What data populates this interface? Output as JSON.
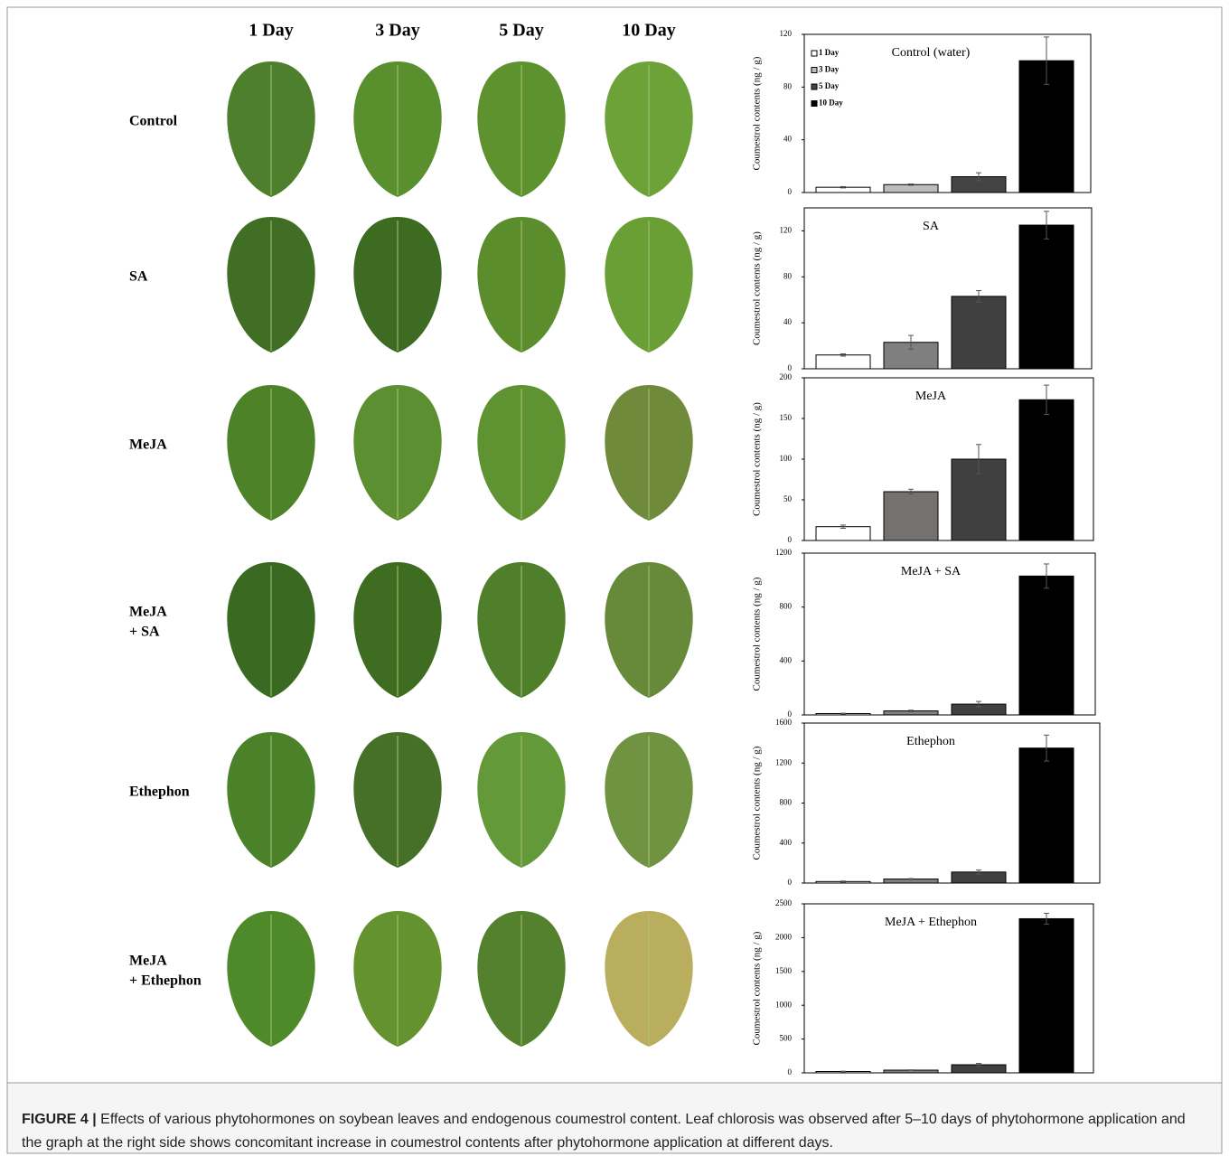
{
  "figure": {
    "columns": [
      "1 Day",
      "3 Day",
      "5 Day",
      "10 Day"
    ],
    "rows": [
      [
        "Control"
      ],
      [
        "SA"
      ],
      [
        "MeJA"
      ],
      [
        "MeJA",
        "+ SA"
      ],
      [
        "Ethephon"
      ],
      [
        "MeJA",
        "+ Ethephon"
      ]
    ],
    "caption_label": "FIGURE 4 |",
    "caption": "Effects of various phytohormones on soybean leaves and endogenous coumestrol content. Leaf chlorosis was observed after 5–10 days of phytohormone application and the graph at the right side shows concomitant increase in coumestrol contents after phytohormone application at different days."
  },
  "chart_data": [
    {
      "type": "bar",
      "title": "Control (water)",
      "y_label": "Coumestrol contents (ng / g)",
      "categories": [
        "1 Day",
        "3 Day",
        "5 Day",
        "10 Day"
      ],
      "legend": true,
      "values": [
        4,
        6,
        12,
        100
      ],
      "errors": [
        0.5,
        0.5,
        3,
        18
      ],
      "colors": [
        "#ffffff",
        "#bdbdbd",
        "#444444",
        "#000000"
      ],
      "ylim": [
        0,
        120
      ],
      "yticks": [
        0,
        40,
        80,
        120
      ]
    },
    {
      "type": "bar",
      "title": "SA",
      "y_label": "Coumestrol contents (ng / g)",
      "values": [
        12,
        23,
        63,
        125
      ],
      "errors": [
        1,
        6,
        5,
        12
      ],
      "colors": [
        "#ffffff",
        "#7f7f7f",
        "#404040",
        "#000000"
      ],
      "ylim": [
        0,
        140
      ],
      "yticks": [
        0,
        40,
        80,
        120
      ]
    },
    {
      "type": "bar",
      "title": "MeJA",
      "y_label": "Coumestrol contents (ng / g)",
      "values": [
        17,
        60,
        100,
        173
      ],
      "errors": [
        2,
        3,
        18,
        18
      ],
      "colors": [
        "#ffffff",
        "#767171",
        "#404040",
        "#000000"
      ],
      "ylim": [
        0,
        200
      ],
      "yticks": [
        0,
        50,
        100,
        150,
        200
      ]
    },
    {
      "type": "bar",
      "title": "MeJA + SA",
      "y_label": "Coumestrol contents (ng / g)",
      "values": [
        10,
        30,
        80,
        1030
      ],
      "errors": [
        3,
        5,
        20,
        90
      ],
      "colors": [
        "#ffffff",
        "#7f7f7f",
        "#404040",
        "#000000"
      ],
      "ylim": [
        0,
        1200
      ],
      "yticks": [
        0,
        400,
        800,
        1200
      ]
    },
    {
      "type": "bar",
      "title": "Ethephon",
      "y_label": "Coumestrol contents (ng / g)",
      "values": [
        15,
        40,
        110,
        1350
      ],
      "errors": [
        5,
        5,
        20,
        130
      ],
      "colors": [
        "#ffffff",
        "#7f7f7f",
        "#404040",
        "#000000"
      ],
      "ylim": [
        0,
        1600
      ],
      "yticks": [
        0,
        400,
        800,
        1200,
        1600
      ]
    },
    {
      "type": "bar",
      "title": "MeJA + Ethephon",
      "y_label": "Coumestrol contents (ng / g)",
      "values": [
        20,
        40,
        120,
        2280
      ],
      "errors": [
        5,
        5,
        20,
        80
      ],
      "colors": [
        "#ffffff",
        "#7f7f7f",
        "#404040",
        "#000000"
      ],
      "ylim": [
        0,
        2500
      ],
      "yticks": [
        0,
        500,
        1000,
        1500,
        2000,
        2500
      ]
    }
  ]
}
